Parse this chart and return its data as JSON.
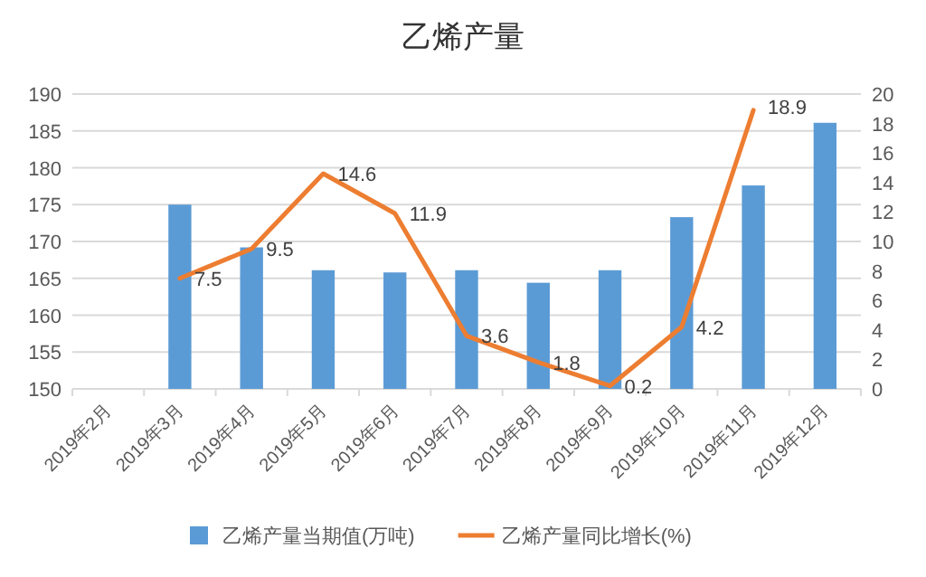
{
  "chart_data": {
    "type": "bar",
    "title": "乙烯产量",
    "categories": [
      "2019年2月",
      "2019年3月",
      "2019年4月",
      "2019年5月",
      "2019年6月",
      "2019年7月",
      "2019年8月",
      "2019年9月",
      "2019年10月",
      "2019年11月",
      "2019年12月"
    ],
    "series": [
      {
        "name": "乙烯产量当期值(万吨)",
        "color": "#5b9bd5",
        "values": [
          null,
          175,
          169.2,
          166.1,
          165.8,
          166.1,
          164.4,
          166.1,
          173.3,
          177.6,
          186.1
        ]
      },
      {
        "name": "乙烯产量同比增长(%)",
        "type": "line",
        "axis": "y2",
        "color": "#ed7d31",
        "values": [
          null,
          7.5,
          9.5,
          14.6,
          11.9,
          3.6,
          1.8,
          0.2,
          4.2,
          18.9,
          null
        ],
        "value_labels": [
          null,
          "7.5",
          "9.5",
          "14.6",
          "11.9",
          "3.6",
          "1.8",
          "0.2",
          "4.2",
          "18.9",
          null
        ]
      }
    ],
    "ylim": [
      150,
      190
    ],
    "yticks": [
      150,
      155,
      160,
      165,
      170,
      175,
      180,
      185,
      190
    ],
    "y2lim": [
      0,
      20
    ],
    "y2ticks": [
      0,
      2,
      4,
      6,
      8,
      10,
      12,
      14,
      16,
      18,
      20
    ],
    "grid": "y",
    "legend": "bottom",
    "marker": "none",
    "line_style": "solid"
  }
}
